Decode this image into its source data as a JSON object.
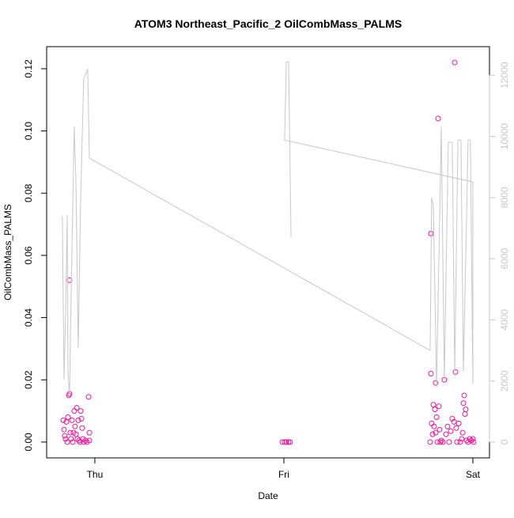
{
  "chart_data": {
    "type": "scatter",
    "title": "ATOM3 Northeast_Pacific_2 OilCombMass_PALMS",
    "x_label": "Date",
    "y_label": "OilCombMass_PALMS",
    "xlim": [
      -0.255,
      2.088
    ],
    "xticks": [
      {
        "value": 0,
        "label": "Thu"
      },
      {
        "value": 1,
        "label": "Fri"
      },
      {
        "value": 2,
        "label": "Sat"
      }
    ],
    "ylim": [
      -0.0051,
      0.1271
    ],
    "yticks": [
      {
        "value": 0,
        "label": "0.00"
      },
      {
        "value": 0.02,
        "label": "0.02"
      },
      {
        "value": 0.04,
        "label": "0.04"
      },
      {
        "value": 0.06,
        "label": "0.06"
      },
      {
        "value": 0.08,
        "label": "0.08"
      },
      {
        "value": 0.1,
        "label": "0.10"
      },
      {
        "value": 0.12,
        "label": "0.12"
      }
    ],
    "y2lim": [
      -517,
      12936
    ],
    "y2ticks": [
      0,
      2000,
      4000,
      6000,
      8000,
      10000,
      12000
    ],
    "series": [
      {
        "color": "#f0169c",
        "x": [
          -0.167,
          -0.163,
          -0.159,
          -0.155,
          -0.151,
          -0.146,
          -0.142,
          -0.138,
          -0.134,
          -0.134,
          -0.13,
          -0.126,
          -0.121,
          -0.117,
          -0.113,
          -0.109,
          -0.105,
          -0.1,
          -0.096,
          -0.092,
          -0.088,
          -0.084,
          -0.079,
          -0.075,
          -0.071,
          -0.067,
          -0.063,
          -0.059,
          -0.05,
          -0.042,
          -0.033,
          -0.029,
          -0.029,
          0.992,
          1.004,
          1.013,
          1.025,
          1.033,
          1.774,
          1.778,
          1.778,
          1.782,
          1.787,
          1.791,
          1.795,
          1.799,
          1.803,
          1.803,
          1.808,
          1.812,
          1.816,
          1.82,
          1.824,
          1.828,
          1.833,
          1.841,
          1.849,
          1.858,
          1.866,
          1.874,
          1.883,
          1.891,
          1.9,
          1.904,
          1.908,
          1.912,
          1.916,
          1.925,
          1.933,
          1.941,
          1.946,
          1.95,
          1.954,
          1.958,
          1.962,
          1.967,
          1.975,
          1.983,
          1.992,
          2.0,
          2.004
        ],
        "values": [
          0.007,
          0.004,
          0.002,
          0.001,
          0.0065,
          0.0,
          0.008,
          0.015,
          0.0155,
          0.052,
          0.003,
          0.001,
          0.007,
          0.0,
          0.003,
          0.01,
          0.005,
          0.0025,
          0.011,
          0.001,
          0.007,
          0.0005,
          0.0,
          0.01,
          0.0075,
          0.0045,
          0.001,
          0.0,
          0.0005,
          0.0,
          0.0145,
          0.003,
          0.0005,
          0,
          0,
          0,
          0,
          0,
          0.0,
          0.067,
          0.022,
          0.006,
          0.0025,
          0.012,
          0.005,
          0.0105,
          0.019,
          0.003,
          0.008,
          0.0,
          0.104,
          0.0115,
          0.004,
          0.0,
          0.0005,
          0.0,
          0.02,
          0.0025,
          0.005,
          0.0,
          0.0035,
          0.0075,
          0.0065,
          0.122,
          0.0225,
          0.0045,
          0.0,
          0.006,
          0.0,
          0.001,
          0.003,
          0.0125,
          0.015,
          0.009,
          0.0105,
          0.0005,
          0.0,
          0.001,
          0.0005,
          0.001,
          0.0
        ]
      },
      {
        "type": "line",
        "axis": "y2",
        "color": "#c8c8c8",
        "x": [
          -0.172,
          -0.163,
          -0.155,
          -0.146,
          -0.142,
          -0.134,
          -0.126,
          -0.109,
          -0.1,
          -0.088,
          -0.075,
          -0.059,
          -0.038,
          -0.029,
          1.774,
          1.782,
          1.791,
          1.808,
          1.833,
          1.849,
          1.87,
          1.891,
          1.904,
          1.921,
          1.937,
          1.95,
          1.975,
          1.987,
          2.0,
          2.0,
          1.004,
          1.013,
          1.025,
          1.038
        ],
        "values": [
          7400,
          2040,
          4110,
          7430,
          2300,
          1530,
          4630,
          10320,
          8510,
          3080,
          7990,
          11880,
          12210,
          9290,
          3000,
          8000,
          7740,
          1790,
          10300,
          2040,
          9810,
          9810,
          2300,
          9880,
          9880,
          2300,
          9880,
          9880,
          1910,
          8510,
          9880,
          12440,
          12440,
          6700
        ]
      }
    ]
  }
}
